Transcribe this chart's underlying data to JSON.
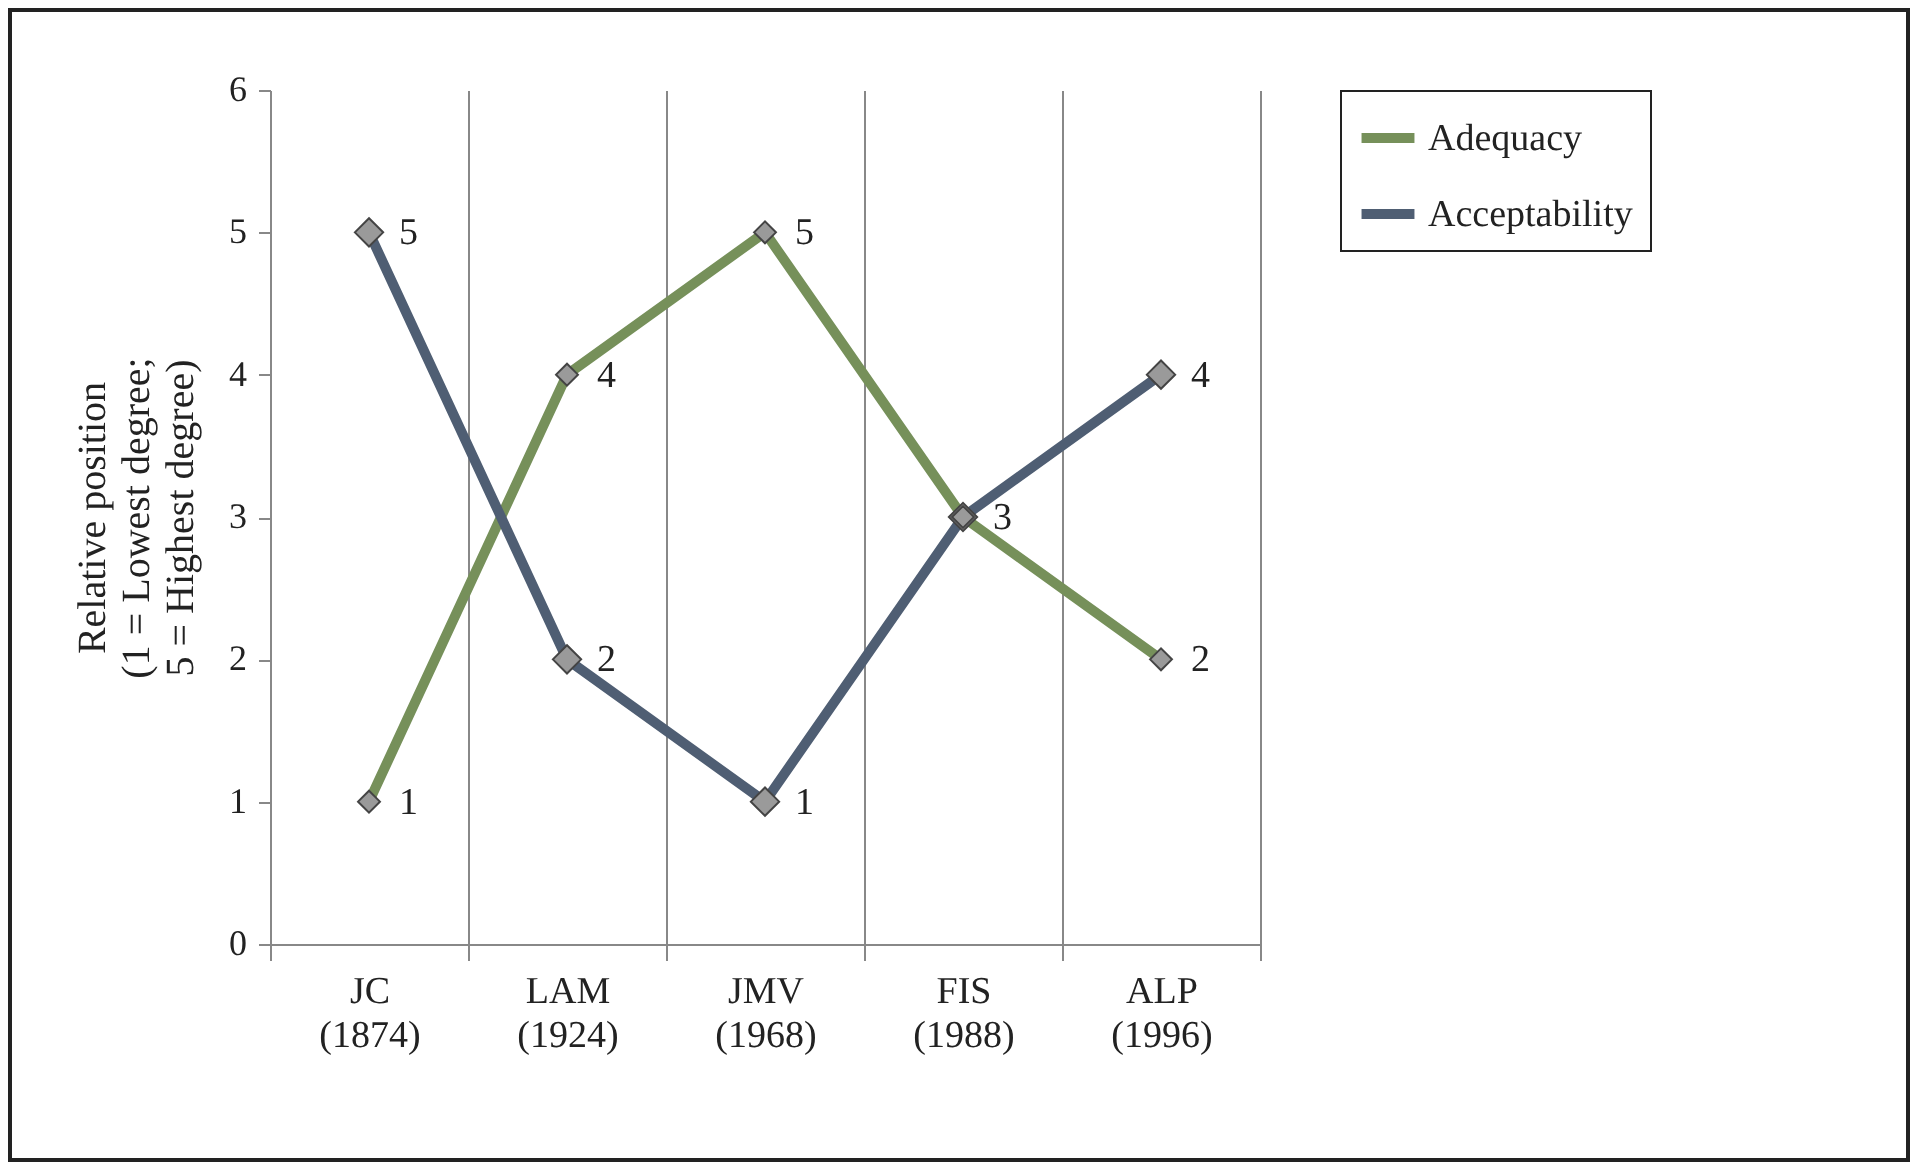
{
  "chart_data": {
    "type": "line",
    "ylabel": "Relative position\n(1 = Lowest degree;\n5 = Highest degree)",
    "categories": [
      "JC\n(1874)",
      "LAM\n(1924)",
      "JMV\n(1968)",
      "FIS\n(1988)",
      "ALP\n(1996)"
    ],
    "series": [
      {
        "name": "Adequacy",
        "color": "#76905a",
        "values": [
          1,
          4,
          5,
          3,
          2
        ],
        "value_labels": [
          "1",
          "4",
          "5",
          "3",
          "2"
        ]
      },
      {
        "name": "Acceptability",
        "color": "#4f5e73",
        "values": [
          5,
          2,
          1,
          3,
          4
        ],
        "value_labels": [
          "5",
          "2",
          "1",
          null,
          "4"
        ]
      }
    ],
    "ylim": [
      0,
      6
    ],
    "yticks": [
      0,
      1,
      2,
      3,
      4,
      5,
      6
    ],
    "grid": "x",
    "legend": "right",
    "marker": "diamond",
    "line_style": "solid"
  }
}
